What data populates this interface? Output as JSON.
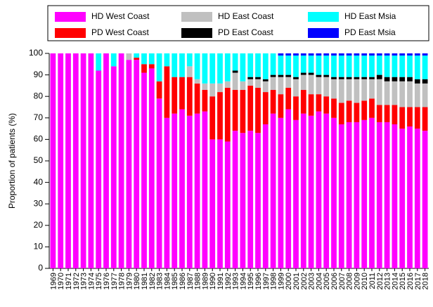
{
  "chart_data": {
    "type": "stacked_bar",
    "categories": [
      "1969",
      "1970",
      "1971",
      "1972",
      "1973",
      "1974",
      "1975",
      "1976",
      "1977",
      "1978",
      "1979",
      "1980",
      "1981",
      "1982",
      "1983",
      "1984",
      "1985",
      "1986",
      "1987",
      "1988",
      "1989",
      "1990",
      "1991",
      "1992",
      "1993",
      "1994",
      "1995",
      "1996",
      "1997",
      "1998",
      "1999",
      "2000",
      "2001",
      "2002",
      "2003",
      "2004",
      "2005",
      "2006",
      "2007",
      "2008",
      "2009",
      "2010",
      "2011",
      "2012",
      "2013",
      "2014",
      "2015",
      "2016",
      "2017",
      "2018"
    ],
    "series": [
      {
        "name": "HD West Coast",
        "color": "#ff00ff",
        "values": [
          100,
          100,
          100,
          100,
          100,
          100,
          92,
          100,
          94,
          100,
          97,
          97,
          91,
          93,
          79,
          70,
          72,
          74,
          71,
          72,
          73,
          60,
          60,
          59,
          64,
          63,
          64,
          63,
          67,
          72,
          70,
          74,
          69,
          72,
          71,
          73,
          72,
          70,
          67,
          68,
          68,
          69,
          70,
          68,
          68,
          67,
          65,
          66,
          65,
          64
        ]
      },
      {
        "name": "PD West Coast",
        "color": "#ff0000",
        "values": [
          0,
          0,
          0,
          0,
          0,
          0,
          0,
          0,
          0,
          0,
          0,
          1,
          4,
          2,
          8,
          24,
          17,
          15,
          18,
          14,
          10,
          20,
          22,
          25,
          19,
          20,
          21,
          21,
          15,
          11,
          11,
          10,
          11,
          11,
          10,
          8,
          8,
          9,
          10,
          10,
          9,
          9,
          9,
          8,
          8,
          9,
          10,
          9,
          10,
          11
        ]
      },
      {
        "name": "HD East Coast",
        "color": "#c0c0c0",
        "values": [
          0,
          0,
          0,
          0,
          0,
          0,
          0,
          0,
          0,
          0,
          3,
          0,
          0,
          0,
          0,
          0,
          0,
          0,
          5,
          2,
          3,
          6,
          4,
          3,
          8,
          4,
          3,
          4,
          5,
          6,
          8,
          5,
          8,
          7,
          9,
          8,
          9,
          9,
          11,
          10,
          11,
          10,
          9,
          12,
          11,
          11,
          12,
          12,
          11,
          11
        ]
      },
      {
        "name": "PD East Coast",
        "color": "#000000",
        "values": [
          0,
          0,
          0,
          0,
          0,
          0,
          0,
          0,
          0,
          0,
          0,
          0,
          0,
          0,
          0,
          0,
          0,
          0,
          0,
          0,
          0,
          0,
          0,
          0,
          1,
          0,
          1,
          1,
          1,
          1,
          1,
          1,
          1,
          1,
          1,
          1,
          1,
          1,
          1,
          1,
          1,
          1,
          1,
          2,
          2,
          2,
          2,
          2,
          2,
          2
        ]
      },
      {
        "name": "HD East Msia",
        "color": "#00ffff",
        "values": [
          0,
          0,
          0,
          0,
          0,
          0,
          8,
          0,
          6,
          0,
          0,
          2,
          5,
          5,
          13,
          6,
          11,
          11,
          6,
          12,
          14,
          14,
          14,
          13,
          8,
          13,
          11,
          11,
          12,
          10,
          9,
          9,
          10,
          8,
          8,
          9,
          9,
          10,
          10,
          10,
          10,
          10,
          10,
          9,
          10,
          10,
          10,
          10,
          11,
          11
        ]
      },
      {
        "name": "PD East Msia",
        "color": "#0000ff",
        "values": [
          0,
          0,
          0,
          0,
          0,
          0,
          0,
          0,
          0,
          0,
          0,
          0,
          0,
          0,
          0,
          0,
          0,
          0,
          0,
          0,
          0,
          0,
          0,
          0,
          0,
          0,
          0,
          0,
          0,
          0,
          1,
          1,
          1,
          1,
          1,
          1,
          1,
          1,
          1,
          1,
          1,
          1,
          1,
          1,
          1,
          1,
          1,
          1,
          1,
          1
        ]
      }
    ],
    "y_label": "Proportion of patients (%)",
    "ylim": [
      0,
      100
    ],
    "yticks": [
      0,
      10,
      20,
      30,
      40,
      50,
      60,
      70,
      80,
      90,
      100
    ]
  }
}
